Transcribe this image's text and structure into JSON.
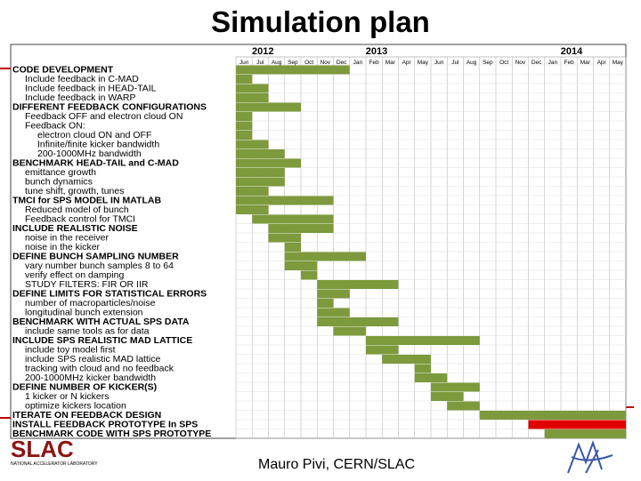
{
  "slide": {
    "title": "Simulation plan",
    "footer": "Mauro Pivi, CERN/SLAC",
    "logo_left_text": "SLAC",
    "logo_left_subtext": "NATIONAL ACCELERATOR LABORATORY"
  },
  "chart_data": {
    "type": "gantt",
    "years": [
      {
        "label": "2012",
        "start_col": 0
      },
      {
        "label": "2013",
        "start_col": 7
      },
      {
        "label": "2014",
        "start_col": 19
      }
    ],
    "months": [
      "Jun",
      "Jul",
      "Aug",
      "Sep",
      "Oct",
      "Nov",
      "Dec",
      "Jan",
      "Feb",
      "Mar",
      "Apr",
      "May",
      "Jun",
      "Jul",
      "Aug",
      "Sep",
      "Oct",
      "Nov",
      "Dec",
      "Jan",
      "Feb",
      "Mar",
      "Apr",
      "May"
    ],
    "tasks": [
      {
        "label": "CODE DEVELOPMENT",
        "bold": true,
        "start": 0,
        "end": 7,
        "color": "#7d9a3c"
      },
      {
        "label": "Include feedback in C-MAD",
        "bold": false,
        "indent": 1,
        "start": 0,
        "end": 1,
        "color": "#7d9a3c"
      },
      {
        "label": "Include feedback in HEAD-TAIL",
        "bold": false,
        "indent": 1,
        "start": 0,
        "end": 2,
        "color": "#7d9a3c"
      },
      {
        "label": "Include feedback in WARP",
        "bold": false,
        "indent": 1,
        "start": 0,
        "end": 2,
        "color": "#7d9a3c"
      },
      {
        "label": "DIFFERENT FEEDBACK CONFIGURATIONS",
        "bold": true,
        "start": 0,
        "end": 4,
        "color": "#7d9a3c"
      },
      {
        "label": "Feedback OFF and electron cloud ON",
        "bold": false,
        "indent": 1,
        "start": 0,
        "end": 1,
        "color": "#7d9a3c"
      },
      {
        "label": "Feedback ON:",
        "bold": false,
        "indent": 1,
        "start": 0,
        "end": 1,
        "color": "#7d9a3c"
      },
      {
        "label": "electron cloud ON and OFF",
        "bold": false,
        "indent": 2,
        "start": 0,
        "end": 1,
        "color": "#7d9a3c"
      },
      {
        "label": "Infinite/finite kicker bandwidth",
        "bold": false,
        "indent": 2,
        "start": 0,
        "end": 2,
        "color": "#7d9a3c"
      },
      {
        "label": "200-1000MHz bandwidth",
        "bold": false,
        "indent": 2,
        "start": 0,
        "end": 3,
        "color": "#7d9a3c"
      },
      {
        "label": "BENCHMARK HEAD-TAIL and C-MAD",
        "bold": true,
        "start": 0,
        "end": 4,
        "color": "#7d9a3c"
      },
      {
        "label": "emittance growth",
        "bold": false,
        "indent": 1,
        "start": 0,
        "end": 3,
        "color": "#7d9a3c"
      },
      {
        "label": "bunch dynamics",
        "bold": false,
        "indent": 1,
        "start": 0,
        "end": 3,
        "color": "#7d9a3c"
      },
      {
        "label": "tune shift, growth, tunes",
        "bold": false,
        "indent": 1,
        "start": 0,
        "end": 2,
        "color": "#7d9a3c"
      },
      {
        "label": "TMCI for SPS MODEL IN MATLAB",
        "bold": true,
        "start": 0,
        "end": 6,
        "color": "#7d9a3c"
      },
      {
        "label": "Reduced model of bunch",
        "bold": false,
        "indent": 1,
        "start": 0,
        "end": 2,
        "color": "#7d9a3c"
      },
      {
        "label": "Feedback control for TMCI",
        "bold": false,
        "indent": 1,
        "start": 1,
        "end": 6,
        "color": "#7d9a3c"
      },
      {
        "label": "INCLUDE REALISTIC NOISE",
        "bold": true,
        "start": 2,
        "end": 6,
        "color": "#7d9a3c"
      },
      {
        "label": "noise in the receiver",
        "bold": false,
        "indent": 1,
        "start": 2,
        "end": 4,
        "color": "#7d9a3c"
      },
      {
        "label": "noise in the kicker",
        "bold": false,
        "indent": 1,
        "start": 3,
        "end": 4,
        "color": "#7d9a3c"
      },
      {
        "label": "DEFINE BUNCH SAMPLING NUMBER",
        "bold": true,
        "start": 3,
        "end": 8,
        "color": "#7d9a3c"
      },
      {
        "label": "vary number bunch samples 8 to 64",
        "bold": false,
        "indent": 1,
        "start": 3,
        "end": 5,
        "color": "#7d9a3c"
      },
      {
        "label": "verify effect on damping",
        "bold": false,
        "indent": 1,
        "start": 4,
        "end": 5,
        "color": "#7d9a3c"
      },
      {
        "label": "STUDY FILTERS: FIR OR IIR",
        "bold": false,
        "indent": 1,
        "start": 5,
        "end": 10,
        "color": "#7d9a3c"
      },
      {
        "label": "DEFINE LIMITS FOR STATISTICAL ERRORS",
        "bold": true,
        "start": 5,
        "end": 7,
        "color": "#7d9a3c"
      },
      {
        "label": "number of macroparticles/noise",
        "bold": false,
        "indent": 1,
        "start": 5,
        "end": 6,
        "color": "#7d9a3c"
      },
      {
        "label": "longitudinal bunch extension",
        "bold": false,
        "indent": 1,
        "start": 5,
        "end": 7,
        "color": "#7d9a3c"
      },
      {
        "label": "BENCHMARK WITH ACTUAL SPS DATA",
        "bold": true,
        "start": 5,
        "end": 10,
        "color": "#7d9a3c"
      },
      {
        "label": "include same tools as for data",
        "bold": false,
        "indent": 1,
        "start": 6,
        "end": 8,
        "color": "#7d9a3c"
      },
      {
        "label": "INCLUDE SPS REALISTIC MAD LATTICE",
        "bold": true,
        "start": 8,
        "end": 15,
        "color": "#7d9a3c"
      },
      {
        "label": "include toy model first",
        "bold": false,
        "indent": 1,
        "start": 8,
        "end": 10,
        "color": "#7d9a3c"
      },
      {
        "label": "include SPS realistic MAD lattice",
        "bold": false,
        "indent": 1,
        "start": 9,
        "end": 12,
        "color": "#7d9a3c"
      },
      {
        "label": "tracking with cloud and no feedback",
        "bold": false,
        "indent": 1,
        "start": 11,
        "end": 12,
        "color": "#7d9a3c"
      },
      {
        "label": "200-1000MHz kicker bandwidth",
        "bold": false,
        "indent": 1,
        "start": 11,
        "end": 13,
        "color": "#7d9a3c"
      },
      {
        "label": "DEFINE NUMBER OF KICKER(S)",
        "bold": true,
        "start": 12,
        "end": 15,
        "color": "#7d9a3c"
      },
      {
        "label": "1 kicker or N kickers",
        "bold": false,
        "indent": 1,
        "start": 12,
        "end": 14,
        "color": "#7d9a3c"
      },
      {
        "label": "optimize kickers location",
        "bold": false,
        "indent": 1,
        "start": 13,
        "end": 15,
        "color": "#7d9a3c"
      },
      {
        "label": "ITERATE ON FEEDBACK DESIGN",
        "bold": true,
        "start": 15,
        "end": 24,
        "color": "#7d9a3c"
      },
      {
        "label": "INSTALL FEEDBACK PROTOTYPE In SPS",
        "bold": true,
        "start": 18,
        "end": 24,
        "color": "#e00000"
      },
      {
        "label": "BENCHMARK CODE WITH SPS PROTOTYPE",
        "bold": true,
        "start": 19,
        "end": 24,
        "color": "#7d9a3c"
      }
    ]
  }
}
